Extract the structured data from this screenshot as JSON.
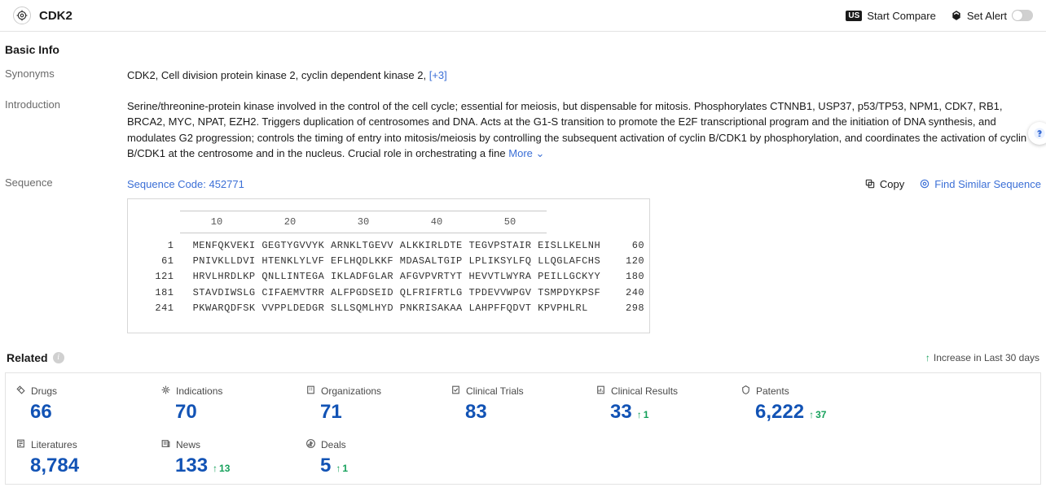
{
  "header": {
    "title": "CDK2",
    "compare_label": "Start Compare",
    "alert_label": "Set Alert"
  },
  "basic_info": {
    "section_title": "Basic Info",
    "synonyms_label": "Synonyms",
    "synonyms_text": "CDK2,  Cell division protein kinase 2,  cyclin dependent kinase 2,  ",
    "synonyms_more": "[+3]",
    "introduction_label": "Introduction",
    "introduction_text": "Serine/threonine-protein kinase involved in the control of the cell cycle; essential for meiosis, but dispensable for mitosis. Phosphorylates CTNNB1, USP37, p53/TP53, NPM1, CDK7, RB1, BRCA2, MYC, NPAT, EZH2. Triggers duplication of centrosomes and DNA. Acts at the G1-S transition to promote the E2F transcriptional program and the initiation of DNA synthesis, and modulates G2 progression; controls the timing of entry into mitosis/meiosis by controlling the subsequent activation of cyclin B/CDK1 by phosphorylation, and coordinates the activation of cyclin B/CDK1 at the centrosome and in the nucleus. Crucial role in orchestrating a fine",
    "more_label": "More",
    "sequence_label": "Sequence",
    "sequence_code_label": "Sequence Code: 452771",
    "copy_label": "Copy",
    "find_similar_label": "Find Similar Sequence",
    "ruler": [
      "10",
      "20",
      "30",
      "40",
      "50"
    ],
    "seq_lines": [
      "    1   MENFQKVEKI GEGTYGVVYK ARNKLTGEVV ALKKIRLDTE TEGVPSTAIR EISLLKELNH     60",
      "   61   PNIVKLLDVI HTENKLYLVF EFLHQDLKKF MDASALTGIP LPLIKSYLFQ LLQGLAFCHS    120",
      "  121   HRVLHRDLKP QNLLINTEGA IKLADFGLAR AFGVPVRTYT HEVVTLWYRA PEILLGCKYY    180",
      "  181   STAVDIWSLG CIFAEMVTRR ALFPGDSEID QLFRIFRTLG TPDEVVWPGV TSMPDYKPSF    240",
      "  241   PKWARQDFSK VVPPLDEDGR SLLSQMLHYD PNKRISAKAA LAHPFFQDVT KPVPHLRL      298"
    ]
  },
  "related": {
    "section_title": "Related",
    "legend_text": "Increase in Last 30 days",
    "cards": [
      {
        "label": "Drugs",
        "value": "66",
        "delta": ""
      },
      {
        "label": "Indications",
        "value": "70",
        "delta": ""
      },
      {
        "label": "Organizations",
        "value": "71",
        "delta": ""
      },
      {
        "label": "Clinical Trials",
        "value": "83",
        "delta": ""
      },
      {
        "label": "Clinical Results",
        "value": "33",
        "delta": "1"
      },
      {
        "label": "Patents",
        "value": "6,222",
        "delta": "37"
      },
      {
        "label": "",
        "value": "",
        "delta": ""
      },
      {
        "label": "Literatures",
        "value": "8,784",
        "delta": ""
      },
      {
        "label": "News",
        "value": "133",
        "delta": "13"
      },
      {
        "label": "Deals",
        "value": "5",
        "delta": "1"
      }
    ]
  },
  "colors": {
    "link": "#3b6fd6",
    "metric": "#1253b5",
    "increase": "#14a05a",
    "border": "#e3e3e3"
  }
}
